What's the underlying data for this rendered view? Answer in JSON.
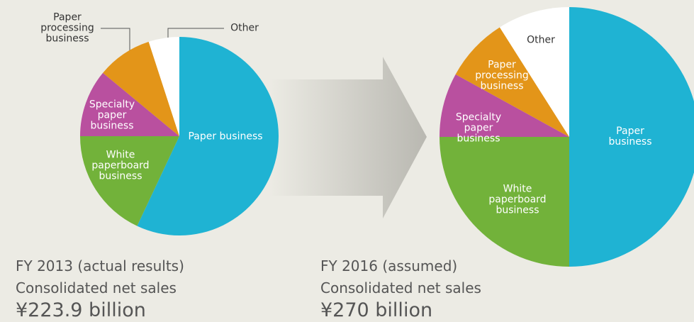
{
  "chart_data": [
    {
      "type": "pie",
      "categories": [
        "Paper business",
        "White\npaperboard\nbusiness",
        "Specialty\npaper\nbusiness",
        "Paper\nprocessing\nbusiness",
        "Other"
      ],
      "values": [
        57,
        18,
        11,
        9,
        5
      ],
      "colors": [
        "#1fb3d3",
        "#72b23a",
        "#b9509f",
        "#e39519",
        "#ffffff"
      ],
      "caption": [
        "FY 2013 (actual results)",
        "Consolidated net sales",
        "¥223.9 billion"
      ]
    },
    {
      "type": "pie",
      "categories": [
        "Paper business",
        "White\npaperboard\nbusiness",
        "Specialty\npaper\nbusiness",
        "Paper\nprocessing\nbusiness",
        "Other"
      ],
      "values": [
        50,
        25,
        8,
        8,
        9
      ],
      "colors": [
        "#1fb3d3",
        "#72b23a",
        "#b9509f",
        "#e39519",
        "#ffffff"
      ],
      "caption": [
        "FY 2016 (assumed)",
        "Consolidated net sales",
        "¥270 billion"
      ]
    }
  ]
}
